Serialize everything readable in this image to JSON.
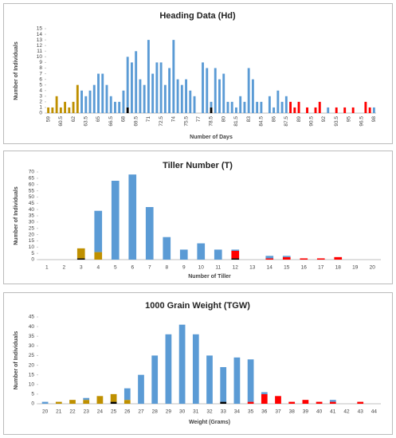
{
  "chart_data": [
    {
      "type": "bar",
      "title": "Heading Data (Hd)",
      "x_label": "Number of Days",
      "y_label": "Number of Individuals",
      "categories": [
        "59",
        null,
        null,
        "60.5",
        null,
        null,
        "62",
        null,
        null,
        "63.5",
        null,
        null,
        "65",
        null,
        null,
        "66.5",
        null,
        null,
        "68",
        null,
        null,
        "69.5",
        null,
        null,
        "71",
        null,
        null,
        "72.5",
        null,
        null,
        "74",
        null,
        null,
        "75.5",
        null,
        null,
        "77",
        null,
        null,
        "78.5",
        null,
        null,
        "80",
        null,
        null,
        "81.5",
        null,
        null,
        "83",
        null,
        null,
        "84.5",
        null,
        null,
        "86",
        null,
        null,
        "87.5",
        null,
        null,
        "89",
        null,
        null,
        "90.5",
        null,
        null,
        "92",
        null,
        null,
        "93.5",
        null,
        null,
        "95",
        null,
        null,
        "96.5",
        null,
        null,
        "98"
      ],
      "series": [
        {
          "color": "#000000",
          "values": [
            0,
            0,
            0,
            0,
            0,
            0,
            0,
            0,
            0,
            0,
            0,
            0,
            0,
            0,
            0,
            0,
            0,
            0,
            0,
            1,
            0,
            0,
            0,
            0,
            0,
            0,
            0,
            0,
            0,
            0,
            0,
            0,
            0,
            0,
            0,
            0,
            0,
            0,
            0,
            1,
            0,
            0,
            0,
            0,
            0,
            0,
            0,
            0,
            0,
            0,
            0,
            0,
            0,
            0,
            0,
            0,
            0,
            0,
            0,
            0,
            0,
            0,
            0,
            0,
            0,
            0,
            0,
            0,
            0,
            0,
            0,
            0,
            0,
            0,
            0,
            0,
            0,
            0,
            0
          ]
        },
        {
          "color": "#bf9000",
          "values": [
            1,
            1,
            3,
            1,
            2,
            1,
            2,
            5,
            0,
            0,
            0,
            0,
            0,
            0,
            0,
            0,
            0,
            0,
            0,
            0,
            0,
            0,
            0,
            0,
            0,
            0,
            0,
            0,
            0,
            0,
            0,
            0,
            0,
            0,
            0,
            0,
            0,
            0,
            0,
            0,
            0,
            0,
            0,
            0,
            0,
            0,
            0,
            0,
            0,
            0,
            0,
            0,
            0,
            0,
            0,
            0,
            0,
            0,
            0,
            0,
            0,
            0,
            0,
            0,
            0,
            0,
            0,
            0,
            0,
            0,
            0,
            0,
            0,
            0,
            0,
            0,
            0,
            0,
            0
          ]
        },
        {
          "color": "#5b9bd5",
          "values": [
            0,
            0,
            0,
            0,
            0,
            0,
            0,
            0,
            4,
            3,
            4,
            5,
            7,
            7,
            5,
            3,
            2,
            2,
            4,
            9,
            9,
            11,
            6,
            5,
            13,
            7,
            9,
            9,
            5,
            8,
            13,
            6,
            5,
            6,
            4,
            3,
            0,
            9,
            8,
            1,
            8,
            6,
            7,
            2,
            2,
            1,
            3,
            2,
            8,
            6,
            2,
            2,
            0,
            3,
            1,
            4,
            2,
            3,
            0,
            0,
            0,
            0,
            0,
            0,
            0,
            0,
            0,
            1,
            0,
            0,
            0,
            0,
            0,
            0,
            0,
            0,
            0,
            0,
            1
          ]
        },
        {
          "color": "#ff0000",
          "values": [
            0,
            0,
            0,
            0,
            0,
            0,
            0,
            0,
            0,
            0,
            0,
            0,
            0,
            0,
            0,
            0,
            0,
            0,
            0,
            0,
            0,
            0,
            0,
            0,
            0,
            0,
            0,
            0,
            0,
            0,
            0,
            0,
            0,
            0,
            0,
            0,
            0,
            0,
            0,
            0,
            0,
            0,
            0,
            0,
            0,
            0,
            0,
            0,
            0,
            0,
            0,
            0,
            0,
            0,
            0,
            0,
            0,
            0,
            2,
            1,
            2,
            0,
            1,
            0,
            1,
            2,
            0,
            0,
            0,
            1,
            0,
            1,
            0,
            1,
            0,
            0,
            2,
            1,
            0
          ]
        }
      ],
      "ylim": [
        0,
        15
      ],
      "yticks": [
        0,
        1,
        2,
        3,
        4,
        5,
        6,
        7,
        8,
        9,
        10,
        11,
        12,
        13,
        14,
        15
      ],
      "grid": false
    },
    {
      "type": "bar",
      "title": "Tiller Number (T)",
      "x_label": "Number of Tiller",
      "y_label": "Number of Individuals",
      "categories": [
        1,
        2,
        3,
        4,
        5,
        6,
        7,
        8,
        9,
        10,
        11,
        12,
        13,
        14,
        15,
        16,
        17,
        18,
        19,
        20
      ],
      "series": [
        {
          "color": "#000000",
          "values": [
            0,
            0,
            1,
            0,
            0,
            0,
            0,
            0,
            0,
            0,
            0,
            1,
            0,
            0,
            0,
            0,
            0,
            0,
            0,
            0
          ]
        },
        {
          "color": "#bf9000",
          "values": [
            0,
            0,
            8,
            6,
            0,
            0,
            0,
            0,
            0,
            0,
            0,
            0,
            0,
            0,
            0,
            0,
            0,
            0,
            0,
            0
          ]
        },
        {
          "color": "#ff0000",
          "values": [
            0,
            0,
            0,
            0,
            0,
            0,
            0,
            0,
            0,
            0,
            0,
            6,
            0,
            1,
            2,
            1,
            1,
            2,
            0,
            0
          ]
        },
        {
          "color": "#5b9bd5",
          "values": [
            0,
            0,
            0,
            33,
            63,
            68,
            42,
            18,
            8,
            13,
            8,
            1,
            0,
            2,
            1,
            0,
            0,
            0,
            0,
            0
          ]
        }
      ],
      "ylim": [
        0,
        70
      ],
      "yticks": [
        0,
        5,
        10,
        15,
        20,
        25,
        30,
        35,
        40,
        45,
        50,
        55,
        60,
        65,
        70
      ],
      "grid": false
    },
    {
      "type": "bar",
      "title": "1000 Grain Weight (TGW)",
      "x_label": "Weight (Grams)",
      "y_label": "Number of Individuals",
      "categories": [
        20,
        21,
        22,
        23,
        24,
        25,
        26,
        27,
        28,
        29,
        30,
        31,
        32,
        33,
        34,
        35,
        36,
        37,
        38,
        39,
        40,
        41,
        42,
        43,
        44
      ],
      "series": [
        {
          "color": "#000000",
          "values": [
            0,
            0,
            0,
            0,
            0,
            1,
            0,
            0,
            0,
            0,
            0,
            0,
            0,
            1,
            0,
            0,
            0,
            0,
            0,
            0,
            0,
            0,
            0,
            0,
            0
          ]
        },
        {
          "color": "#bf9000",
          "values": [
            0,
            1,
            2,
            2,
            4,
            4,
            2,
            0,
            0,
            0,
            0,
            0,
            0,
            0,
            0,
            0,
            0,
            0,
            0,
            0,
            0,
            0,
            0,
            0,
            0
          ]
        },
        {
          "color": "#ff0000",
          "values": [
            0,
            0,
            0,
            0,
            0,
            0,
            0,
            0,
            0,
            0,
            0,
            0,
            0,
            0,
            0,
            1,
            5,
            4,
            1,
            2,
            1,
            1,
            0,
            1,
            0
          ]
        },
        {
          "color": "#5b9bd5",
          "values": [
            1,
            0,
            0,
            1,
            0,
            0,
            6,
            15,
            25,
            36,
            41,
            36,
            25,
            18,
            24,
            22,
            1,
            0,
            0,
            0,
            0,
            1,
            0,
            0,
            0
          ]
        }
      ],
      "ylim": [
        0,
        45
      ],
      "yticks": [
        0,
        5,
        10,
        15,
        20,
        25,
        30,
        35,
        40,
        45
      ],
      "grid": false
    }
  ]
}
